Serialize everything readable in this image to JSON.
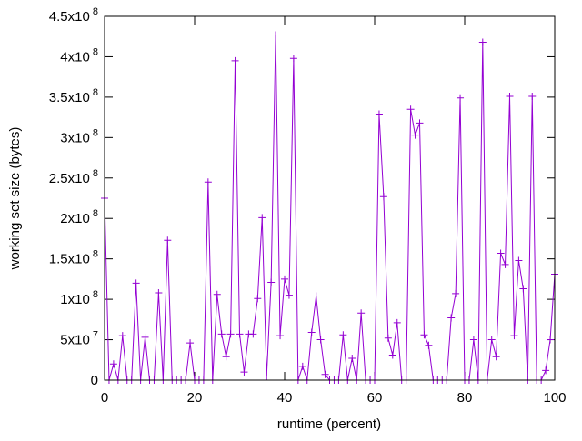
{
  "chart_data": {
    "type": "line",
    "title": "",
    "xlabel": "runtime (percent)",
    "ylabel": "working set size (bytes)",
    "xlim": [
      0,
      100
    ],
    "ylim": [
      0,
      450000000
    ],
    "grid": false,
    "legend": "none",
    "line_color": "#9400d3",
    "marker": "plus",
    "x_ticks": [
      {
        "value": 0,
        "label": "0"
      },
      {
        "value": 20,
        "label": "20"
      },
      {
        "value": 40,
        "label": "40"
      },
      {
        "value": 60,
        "label": "60"
      },
      {
        "value": 80,
        "label": "80"
      },
      {
        "value": 100,
        "label": "100"
      }
    ],
    "y_ticks": [
      {
        "value": 0,
        "mantissa": "0",
        "exponent": ""
      },
      {
        "value": 50000000,
        "mantissa": "5x10",
        "exponent": "7"
      },
      {
        "value": 100000000,
        "mantissa": "1x10",
        "exponent": "8"
      },
      {
        "value": 150000000,
        "mantissa": "1.5x10",
        "exponent": "8"
      },
      {
        "value": 200000000,
        "mantissa": "2x10",
        "exponent": "8"
      },
      {
        "value": 250000000,
        "mantissa": "2.5x10",
        "exponent": "8"
      },
      {
        "value": 300000000,
        "mantissa": "3x10",
        "exponent": "8"
      },
      {
        "value": 350000000,
        "mantissa": "3.5x10",
        "exponent": "8"
      },
      {
        "value": 400000000,
        "mantissa": "4x10",
        "exponent": "8"
      },
      {
        "value": 450000000,
        "mantissa": "4.5x10",
        "exponent": "8"
      }
    ],
    "series": [
      {
        "name": "working set size",
        "x": [
          0,
          1,
          2,
          3,
          4,
          5,
          6,
          7,
          8,
          9,
          10,
          11,
          12,
          13,
          14,
          15,
          16,
          17,
          18,
          19,
          20,
          21,
          22,
          23,
          24,
          25,
          26,
          27,
          28,
          29,
          30,
          31,
          32,
          33,
          34,
          35,
          36,
          37,
          38,
          39,
          40,
          41,
          42,
          43,
          44,
          45,
          46,
          47,
          48,
          49,
          50,
          51,
          52,
          53,
          54,
          55,
          56,
          57,
          58,
          59,
          60,
          61,
          62,
          63,
          64,
          65,
          66,
          67,
          68,
          69,
          70,
          71,
          72,
          73,
          74,
          75,
          76,
          77,
          78,
          79,
          80,
          81,
          82,
          83,
          84,
          85,
          86,
          87,
          88,
          89,
          90,
          91,
          92,
          93,
          94,
          95,
          96,
          97,
          98,
          99,
          100
        ],
        "y_1e7": [
          22.5,
          0,
          2,
          0,
          5.5,
          0,
          0,
          12,
          0,
          5.3,
          0,
          0,
          10.8,
          0,
          17.3,
          0,
          0,
          0,
          0,
          4.6,
          0,
          0,
          0,
          24.5,
          0,
          10.6,
          5.7,
          2.9,
          5.7,
          39.5,
          5.7,
          1,
          5.7,
          5.7,
          10.1,
          20.1,
          0.5,
          12.1,
          42.7,
          5.5,
          12.5,
          10.5,
          39.8,
          0,
          1.7,
          0,
          5.9,
          10.4,
          5,
          0.7,
          0,
          0,
          0,
          5.6,
          0,
          2.7,
          0,
          8.3,
          0,
          0,
          0,
          32.9,
          22.7,
          5.2,
          3.1,
          7.1,
          0,
          0,
          33.5,
          30.3,
          31.8,
          5.6,
          4.3,
          0,
          0,
          0,
          0,
          7.7,
          10.7,
          34.9,
          0,
          0,
          5,
          0,
          41.8,
          0,
          5,
          2.9,
          15.7,
          14.3,
          35.1,
          5.5,
          14.8,
          11.3,
          0,
          35.1,
          0,
          0,
          1.2,
          5,
          13.1
        ]
      }
    ]
  }
}
